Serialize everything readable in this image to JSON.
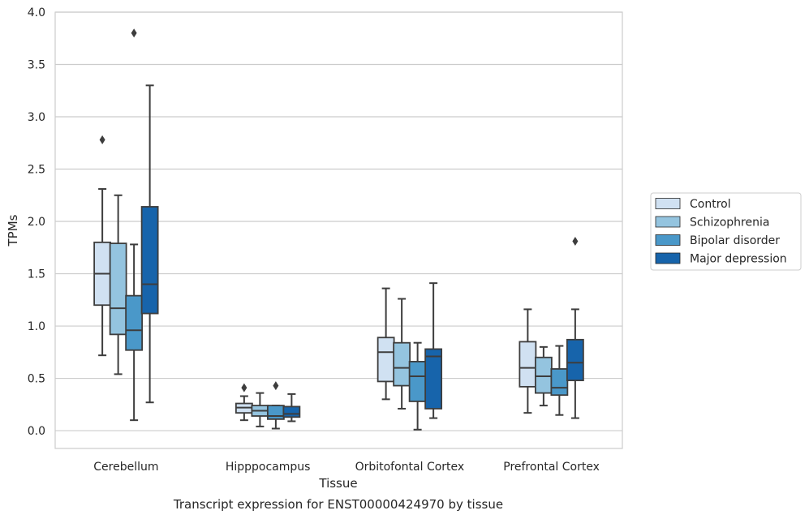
{
  "chart_data": {
    "type": "boxplot",
    "title": "",
    "caption": "Transcript expression for ENST00000424970 by tissue",
    "xlabel": "Tissue",
    "ylabel": "TPMs",
    "ylim": [
      -0.17,
      4.0
    ],
    "yticks": [
      "0.0",
      "0.5",
      "1.0",
      "1.5",
      "2.0",
      "2.5",
      "3.0",
      "3.5",
      "4.0"
    ],
    "grid": "horizontal",
    "legend_position": "right",
    "categories": [
      "Cerebellum",
      "Hipppocampus",
      "Orbitofontal Cortex",
      "Prefrontal Cortex"
    ],
    "series": [
      {
        "name": "Control",
        "color": "#d0e1f2",
        "boxes": [
          {
            "whisker_low": 0.72,
            "q1": 1.2,
            "median": 1.5,
            "q3": 1.8,
            "whisker_high": 2.31,
            "outliers": [
              2.78
            ]
          },
          {
            "whisker_low": 0.1,
            "q1": 0.17,
            "median": 0.22,
            "q3": 0.26,
            "whisker_high": 0.33,
            "outliers": [
              0.41
            ]
          },
          {
            "whisker_low": 0.3,
            "q1": 0.47,
            "median": 0.75,
            "q3": 0.89,
            "whisker_high": 1.36,
            "outliers": []
          },
          {
            "whisker_low": 0.17,
            "q1": 0.42,
            "median": 0.6,
            "q3": 0.85,
            "whisker_high": 1.16,
            "outliers": []
          }
        ]
      },
      {
        "name": "Schizophrenia",
        "color": "#94c4df",
        "boxes": [
          {
            "whisker_low": 0.54,
            "q1": 0.92,
            "median": 1.17,
            "q3": 1.79,
            "whisker_high": 2.25,
            "outliers": []
          },
          {
            "whisker_low": 0.04,
            "q1": 0.14,
            "median": 0.19,
            "q3": 0.24,
            "whisker_high": 0.36,
            "outliers": []
          },
          {
            "whisker_low": 0.21,
            "q1": 0.43,
            "median": 0.6,
            "q3": 0.84,
            "whisker_high": 1.26,
            "outliers": []
          },
          {
            "whisker_low": 0.24,
            "q1": 0.36,
            "median": 0.52,
            "q3": 0.7,
            "whisker_high": 0.8,
            "outliers": []
          }
        ]
      },
      {
        "name": "Bipolar disorder",
        "color": "#4a98c9",
        "boxes": [
          {
            "whisker_low": 0.1,
            "q1": 0.77,
            "median": 0.96,
            "q3": 1.29,
            "whisker_high": 1.78,
            "outliers": [
              3.8
            ]
          },
          {
            "whisker_low": 0.02,
            "q1": 0.11,
            "median": 0.14,
            "q3": 0.24,
            "whisker_high": 0.24,
            "outliers": [
              0.43
            ]
          },
          {
            "whisker_low": 0.01,
            "q1": 0.28,
            "median": 0.52,
            "q3": 0.66,
            "whisker_high": 0.84,
            "outliers": []
          },
          {
            "whisker_low": 0.15,
            "q1": 0.34,
            "median": 0.41,
            "q3": 0.59,
            "whisker_high": 0.81,
            "outliers": []
          }
        ]
      },
      {
        "name": "Major depression",
        "color": "#1764ab",
        "boxes": [
          {
            "whisker_low": 0.27,
            "q1": 1.12,
            "median": 1.4,
            "q3": 2.14,
            "whisker_high": 3.3,
            "outliers": []
          },
          {
            "whisker_low": 0.09,
            "q1": 0.13,
            "median": 0.16,
            "q3": 0.23,
            "whisker_high": 0.35,
            "outliers": []
          },
          {
            "whisker_low": 0.12,
            "q1": 0.21,
            "median": 0.71,
            "q3": 0.78,
            "whisker_high": 1.41,
            "outliers": []
          },
          {
            "whisker_low": 0.12,
            "q1": 0.48,
            "median": 0.65,
            "q3": 0.87,
            "whisker_high": 1.16,
            "outliers": [
              1.81
            ]
          }
        ]
      }
    ]
  }
}
